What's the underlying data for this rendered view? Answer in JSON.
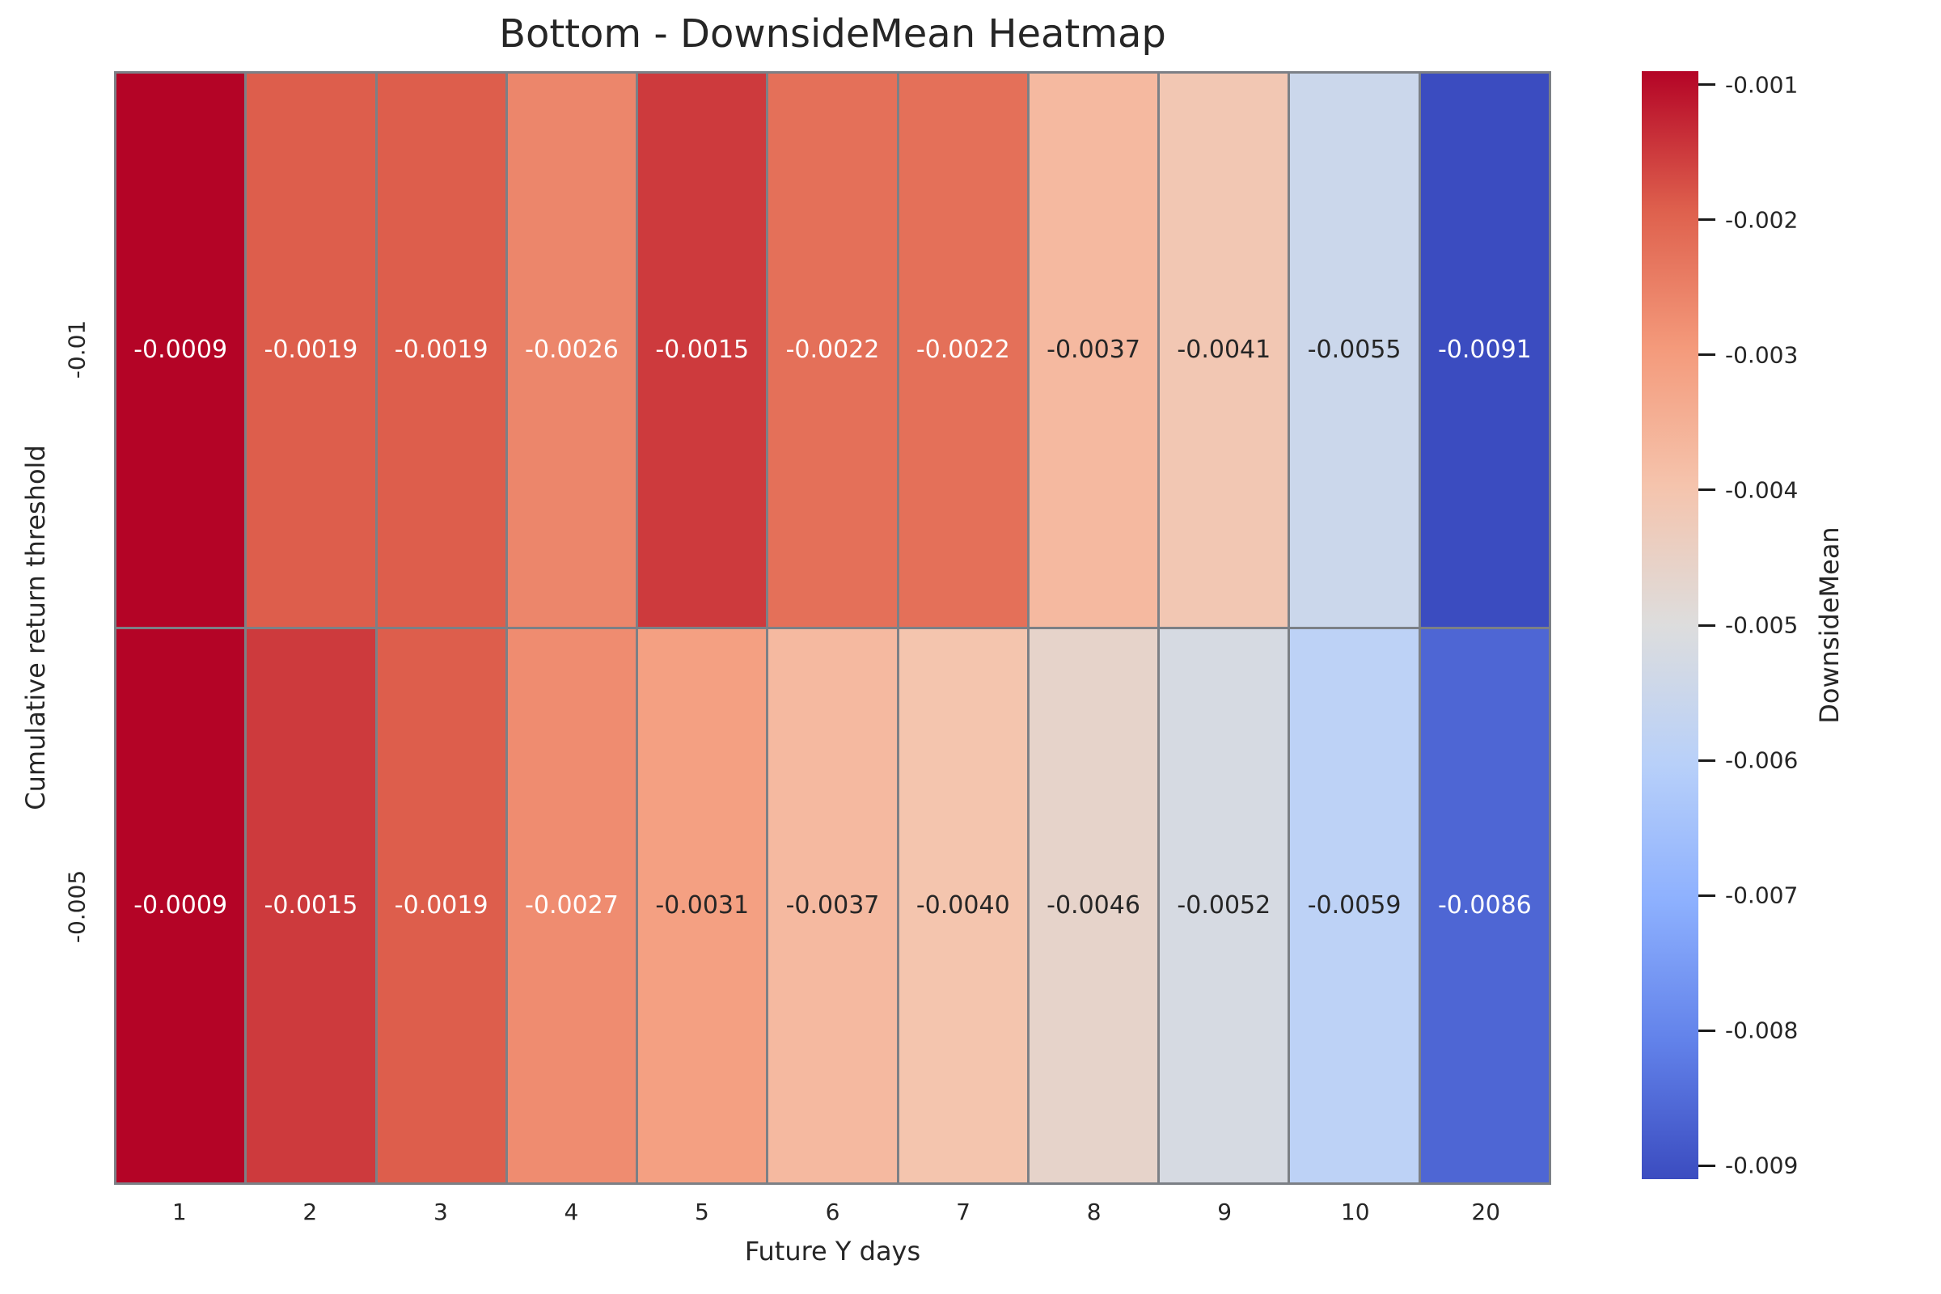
{
  "title": "Bottom - DownsideMean Heatmap",
  "chart_data": {
    "type": "heatmap",
    "title": "Bottom - DownsideMean Heatmap",
    "xlabel": "Future Y days",
    "ylabel": "Cumulative return threshold",
    "x_ticklabels": [
      "1",
      "2",
      "3",
      "4",
      "5",
      "6",
      "7",
      "8",
      "9",
      "10",
      "20"
    ],
    "y_ticklabels": [
      "-0.01",
      "-0.005"
    ],
    "rows": [
      {
        "label": "-0.01",
        "values": [
          -0.0009,
          -0.0019,
          -0.0019,
          -0.0026,
          -0.0015,
          -0.0022,
          -0.0022,
          -0.0037,
          -0.0041,
          -0.0055,
          -0.0091
        ]
      },
      {
        "label": "-0.005",
        "values": [
          -0.0009,
          -0.0015,
          -0.0019,
          -0.0027,
          -0.0031,
          -0.0037,
          -0.004,
          -0.0046,
          -0.0052,
          -0.0059,
          -0.0086
        ]
      }
    ],
    "value_decimals": 4,
    "colorbar": {
      "label": "DownsideMean",
      "tick_values": [
        -0.001,
        -0.002,
        -0.003,
        -0.004,
        -0.005,
        -0.006,
        -0.007,
        -0.008,
        -0.009
      ],
      "tick_decimals": 3,
      "vmin": -0.0091,
      "vmax": -0.0009
    },
    "colormap": {
      "name": "coolwarm",
      "anchors": [
        {
          "t": 0.0,
          "color": "#3b4cc0"
        },
        {
          "t": 0.125,
          "color": "#6282ea"
        },
        {
          "t": 0.25,
          "color": "#8db0fe"
        },
        {
          "t": 0.375,
          "color": "#b8d0f9"
        },
        {
          "t": 0.5,
          "color": "#dddddd"
        },
        {
          "t": 0.625,
          "color": "#f5c4ad"
        },
        {
          "t": 0.75,
          "color": "#f49a7b"
        },
        {
          "t": 0.875,
          "color": "#de604d"
        },
        {
          "t": 1.0,
          "color": "#b40426"
        }
      ]
    },
    "grid_line_color": "#7c8086",
    "annotation_dark_color": "#262626",
    "annotation_light_color": "#ffffff"
  }
}
